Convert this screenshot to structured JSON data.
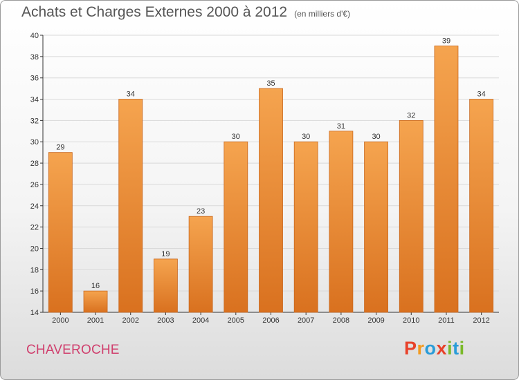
{
  "header": {
    "title": "Achats et Charges Externes 2000 à 2012",
    "unit": "(en milliers d'€)"
  },
  "footer": {
    "commune": "CHAVEROCHE",
    "logo_letters": [
      "P",
      "r",
      "o",
      "x",
      "i",
      "t",
      "i"
    ],
    "logo_colors": [
      "#e8412a",
      "#f39a1f",
      "#2a9cd8",
      "#e8412a",
      "#7ab929",
      "#2a9cd8",
      "#7ab929"
    ]
  },
  "colors": {
    "bar_top": "#f5a44f",
    "bar_bottom": "#d9711f",
    "bar_border": "#c8661c",
    "grid": "#d9d9d9"
  },
  "chart_data": {
    "type": "bar",
    "title": "Achats et Charges Externes 2000 à 2012",
    "xlabel": "",
    "ylabel": "",
    "categories": [
      "2000",
      "2001",
      "2002",
      "2003",
      "2004",
      "2005",
      "2006",
      "2007",
      "2008",
      "2009",
      "2010",
      "2011",
      "2012"
    ],
    "values": [
      29,
      16,
      34,
      19,
      23,
      30,
      35,
      30,
      31,
      30,
      32,
      39,
      34
    ],
    "ylim": [
      14,
      40
    ],
    "yticks": [
      14,
      16,
      18,
      20,
      22,
      24,
      26,
      28,
      30,
      32,
      34,
      36,
      38,
      40
    ],
    "grid": true,
    "legend": "none"
  }
}
